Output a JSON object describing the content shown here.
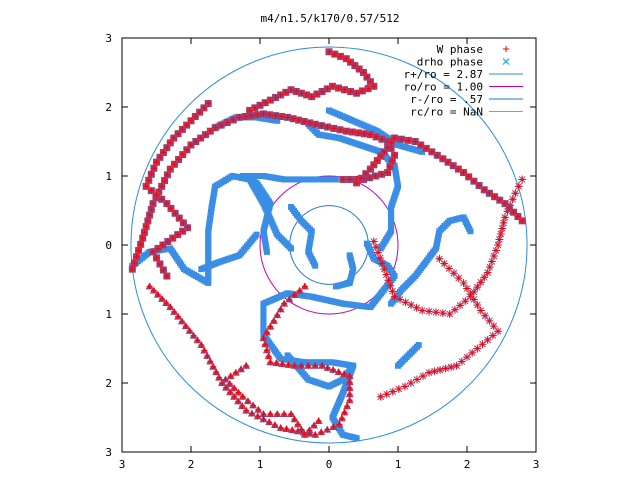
{
  "chart_data": {
    "type": "scatter",
    "title": "m4/n1.5/k170/0.57/512",
    "xlabel": "",
    "ylabel": "",
    "xlim": [
      -3,
      3
    ],
    "ylim": [
      -3,
      3
    ],
    "x_ticks": [
      "3",
      "2",
      "1",
      "0",
      "1",
      "2",
      "3"
    ],
    "y_ticks": [
      "3",
      "2",
      "1",
      "0",
      "1",
      "2",
      "3"
    ],
    "grid": false,
    "legend_position": "top-right",
    "legend": [
      {
        "label": "W phase",
        "kind": "plus",
        "color": "#ff0000"
      },
      {
        "label": "drho phase",
        "kind": "cross",
        "color": "#00a0e0"
      },
      {
        "label": "r+/ro = 2.87",
        "kind": "line",
        "color": "#2b8fd9"
      },
      {
        "label": "ro/ro = 1.00",
        "kind": "line",
        "color": "#c000c0"
      },
      {
        "label": "r-/ro = .57",
        "kind": "line",
        "color": "#1e78c8"
      },
      {
        "label": "rc/ro = NaN",
        "kind": "line",
        "color": "#20c8e0"
      }
    ],
    "circles": [
      {
        "name": "r+/ro",
        "r": 2.87,
        "color": "#2b8fd9"
      },
      {
        "name": "ro/ro",
        "r": 1.0,
        "color": "#c000c0"
      },
      {
        "name": "r-/ro",
        "r": 0.57,
        "color": "#1e78c8"
      }
    ],
    "spiral_arms": [
      {
        "name": "arm-1",
        "marker": "square",
        "points": [
          [
            0.2,
            0.95
          ],
          [
            0.5,
            0.95
          ],
          [
            0.85,
            1.05
          ],
          [
            0.95,
            1.3
          ],
          [
            0.85,
            1.5
          ],
          [
            0.6,
            1.6
          ],
          [
            0.25,
            1.65
          ],
          [
            -0.2,
            1.75
          ],
          [
            -0.6,
            1.85
          ],
          [
            -0.95,
            1.9
          ],
          [
            -1.3,
            1.85
          ],
          [
            -1.65,
            1.7
          ],
          [
            -2.0,
            1.45
          ],
          [
            -2.3,
            1.1
          ],
          [
            -2.55,
            0.6
          ],
          [
            -2.7,
            0.1
          ],
          [
            -2.85,
            -0.35
          ]
        ]
      },
      {
        "name": "arm-2",
        "marker": "asterisk",
        "points": [
          [
            0.65,
            0.05
          ],
          [
            0.8,
            -0.35
          ],
          [
            0.95,
            -0.75
          ],
          [
            1.35,
            -0.95
          ],
          [
            1.75,
            -1.0
          ],
          [
            2.05,
            -0.75
          ],
          [
            2.3,
            -0.4
          ],
          [
            2.45,
            0.0
          ],
          [
            2.55,
            0.4
          ],
          [
            2.7,
            0.75
          ],
          [
            2.8,
            0.95
          ]
        ]
      },
      {
        "name": "arm-3",
        "marker": "triangle",
        "points": [
          [
            -0.35,
            -0.6
          ],
          [
            -0.65,
            -0.85
          ],
          [
            -0.95,
            -1.35
          ],
          [
            -0.85,
            -1.7
          ],
          [
            -0.5,
            -1.75
          ],
          [
            -0.1,
            -1.75
          ],
          [
            0.3,
            -1.9
          ],
          [
            0.3,
            -2.25
          ],
          [
            0.15,
            -2.6
          ],
          [
            -0.2,
            -2.75
          ],
          [
            -0.7,
            -2.65
          ],
          [
            -1.2,
            -2.4
          ],
          [
            -1.55,
            -2.0
          ],
          [
            -1.85,
            -1.45
          ],
          [
            -2.3,
            -0.9
          ],
          [
            -2.6,
            -0.6
          ]
        ]
      },
      {
        "name": "arm-4",
        "marker": "square",
        "points": [
          [
            0.4,
            0.9
          ],
          [
            0.6,
            1.1
          ],
          [
            0.8,
            1.35
          ],
          [
            0.95,
            1.55
          ],
          [
            1.25,
            1.5
          ],
          [
            1.65,
            1.25
          ],
          [
            1.95,
            1.05
          ],
          [
            2.25,
            0.8
          ],
          [
            2.55,
            0.6
          ],
          [
            2.8,
            0.35
          ]
        ]
      },
      {
        "name": "arm-5",
        "marker": "square",
        "points": [
          [
            0.0,
            2.8
          ],
          [
            0.25,
            2.7
          ],
          [
            0.5,
            2.5
          ],
          [
            0.65,
            2.3
          ],
          [
            0.4,
            2.2
          ],
          [
            0.05,
            2.3
          ],
          [
            -0.25,
            2.15
          ],
          [
            -0.55,
            2.25
          ],
          [
            -0.85,
            2.1
          ],
          [
            -1.15,
            1.95
          ]
        ]
      },
      {
        "name": "arm-6",
        "marker": "square",
        "points": [
          [
            -1.75,
            2.05
          ],
          [
            -2.0,
            1.8
          ],
          [
            -2.25,
            1.55
          ],
          [
            -2.5,
            1.2
          ],
          [
            -2.65,
            0.85
          ],
          [
            -2.35,
            0.6
          ],
          [
            -2.05,
            0.25
          ],
          [
            -2.55,
            -0.1
          ],
          [
            -2.35,
            -0.45
          ]
        ]
      },
      {
        "name": "arm-7",
        "marker": "asterisk",
        "points": [
          [
            1.6,
            -0.2
          ],
          [
            1.95,
            -0.55
          ],
          [
            2.2,
            -0.95
          ],
          [
            2.45,
            -1.25
          ],
          [
            2.15,
            -1.5
          ],
          [
            1.85,
            -1.75
          ],
          [
            1.45,
            -1.85
          ],
          [
            1.1,
            -2.05
          ],
          [
            0.75,
            -2.2
          ]
        ]
      },
      {
        "name": "arm-8",
        "marker": "triangle",
        "points": [
          [
            -1.2,
            -1.75
          ],
          [
            -1.5,
            -1.95
          ],
          [
            -1.25,
            -2.2
          ],
          [
            -0.95,
            -2.45
          ],
          [
            -0.55,
            -2.45
          ],
          [
            -0.35,
            -2.75
          ],
          [
            -0.15,
            -2.55
          ]
        ]
      }
    ],
    "phase_ridges": [
      {
        "name": "ridge-1",
        "points": [
          [
            0.55,
            0.02
          ],
          [
            0.65,
            -0.2
          ],
          [
            0.85,
            -0.3
          ],
          [
            0.95,
            -0.45
          ],
          [
            0.6,
            -0.9
          ],
          [
            0.2,
            -0.85
          ],
          [
            -0.25,
            -0.75
          ],
          [
            -0.6,
            -0.7
          ],
          [
            -0.95,
            -0.85
          ],
          [
            -0.95,
            -1.3
          ],
          [
            -0.7,
            -1.65
          ],
          [
            -0.35,
            -1.7
          ],
          [
            0.05,
            -1.7
          ],
          [
            0.35,
            -1.75
          ],
          [
            0.2,
            -2.15
          ],
          [
            0.05,
            -2.5
          ],
          [
            0.2,
            -2.75
          ],
          [
            0.4,
            -2.8
          ]
        ]
      },
      {
        "name": "ridge-2",
        "points": [
          [
            -0.55,
            -0.05
          ],
          [
            -0.75,
            0.15
          ],
          [
            -0.95,
            0.6
          ],
          [
            -1.15,
            0.95
          ],
          [
            -1.4,
            1.0
          ],
          [
            -1.65,
            0.85
          ],
          [
            -1.7,
            0.55
          ],
          [
            -1.75,
            0.2
          ],
          [
            -1.75,
            -0.25
          ],
          [
            -1.75,
            -0.55
          ],
          [
            -2.1,
            -0.35
          ],
          [
            -2.3,
            -0.05
          ],
          [
            -2.6,
            -0.1
          ],
          [
            -2.85,
            -0.3
          ]
        ]
      },
      {
        "name": "ridge-3",
        "points": [
          [
            0.1,
            0.95
          ],
          [
            -0.3,
            0.95
          ],
          [
            -0.65,
            0.95
          ],
          [
            -0.95,
            1.0
          ],
          [
            -1.25,
            1.0
          ],
          [
            -1.05,
            0.9
          ],
          [
            -0.85,
            0.6
          ],
          [
            -0.95,
            0.2
          ],
          [
            -0.9,
            -0.1
          ]
        ]
      },
      {
        "name": "ridge-4",
        "points": [
          [
            -0.3,
            1.75
          ],
          [
            -0.15,
            1.6
          ],
          [
            0.15,
            1.55
          ],
          [
            0.45,
            1.45
          ],
          [
            0.75,
            1.35
          ],
          [
            0.95,
            1.15
          ],
          [
            1.0,
            0.85
          ],
          [
            0.9,
            0.55
          ],
          [
            0.9,
            0.2
          ],
          [
            0.75,
            -0.05
          ]
        ]
      },
      {
        "name": "ridge-5",
        "points": [
          [
            -0.75,
            1.8
          ],
          [
            -1.05,
            1.85
          ],
          [
            -1.35,
            1.85
          ],
          [
            -1.65,
            1.7
          ]
        ]
      },
      {
        "name": "ridge-6",
        "points": [
          [
            0.0,
            1.95
          ],
          [
            0.35,
            1.8
          ],
          [
            0.7,
            1.65
          ],
          [
            1.0,
            1.45
          ],
          [
            1.35,
            1.35
          ]
        ]
      },
      {
        "name": "ridge-7",
        "points": [
          [
            0.9,
            -0.85
          ],
          [
            1.05,
            -0.65
          ],
          [
            1.25,
            -0.45
          ],
          [
            1.4,
            -0.25
          ],
          [
            1.55,
            -0.05
          ],
          [
            1.6,
            0.2
          ],
          [
            1.75,
            0.35
          ],
          [
            1.95,
            0.4
          ],
          [
            2.05,
            0.2
          ]
        ]
      },
      {
        "name": "ridge-8",
        "points": [
          [
            -1.05,
            0.15
          ],
          [
            -1.3,
            -0.15
          ],
          [
            -1.6,
            -0.25
          ],
          [
            -1.85,
            -0.35
          ]
        ]
      },
      {
        "name": "ridge-9",
        "points": [
          [
            -0.6,
            -1.6
          ],
          [
            -0.3,
            -1.95
          ],
          [
            0.0,
            -2.05
          ],
          [
            0.2,
            -1.95
          ],
          [
            0.35,
            -1.75
          ]
        ]
      },
      {
        "name": "ridge-10",
        "points": [
          [
            -0.55,
            0.55
          ],
          [
            -0.4,
            0.35
          ],
          [
            -0.25,
            0.2
          ],
          [
            -0.3,
            -0.1
          ],
          [
            -0.2,
            -0.3
          ]
        ]
      },
      {
        "name": "ridge-11",
        "points": [
          [
            0.3,
            -0.15
          ],
          [
            0.35,
            -0.35
          ],
          [
            0.3,
            -0.55
          ],
          [
            0.1,
            -0.6
          ]
        ]
      },
      {
        "name": "ridge-12",
        "points": [
          [
            1.0,
            -1.75
          ],
          [
            1.15,
            -1.6
          ],
          [
            1.3,
            -1.45
          ]
        ]
      }
    ]
  }
}
